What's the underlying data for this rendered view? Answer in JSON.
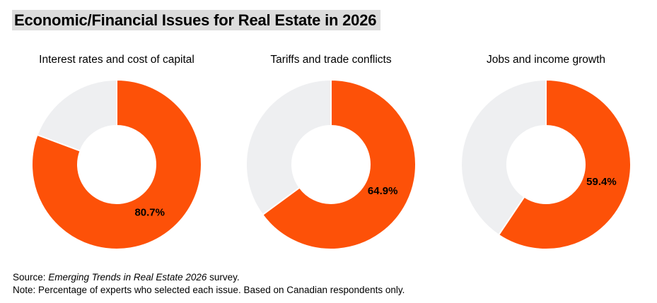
{
  "title": "Economic/Financial Issues for Real Estate in 2026",
  "chart_data": [
    {
      "type": "pie",
      "variant": "donut",
      "title": "Interest rates and cost of capital",
      "value": 80.7,
      "label": "80.7%",
      "unit": "%"
    },
    {
      "type": "pie",
      "variant": "donut",
      "title": "Tariffs and trade conflicts",
      "value": 64.9,
      "label": "64.9%",
      "unit": "%"
    },
    {
      "type": "pie",
      "variant": "donut",
      "title": "Jobs and income growth",
      "value": 59.4,
      "label": "59.4%",
      "unit": "%"
    }
  ],
  "colors": {
    "selected": "#FD5108",
    "remainder": "#EEEFF1"
  },
  "footer": {
    "source_prefix": "Source: ",
    "source_title": "Emerging Trends in Real Estate 2026",
    "source_suffix": " survey.",
    "note": "Note: Percentage of experts who selected each issue. Based on Canadian respondents only."
  }
}
